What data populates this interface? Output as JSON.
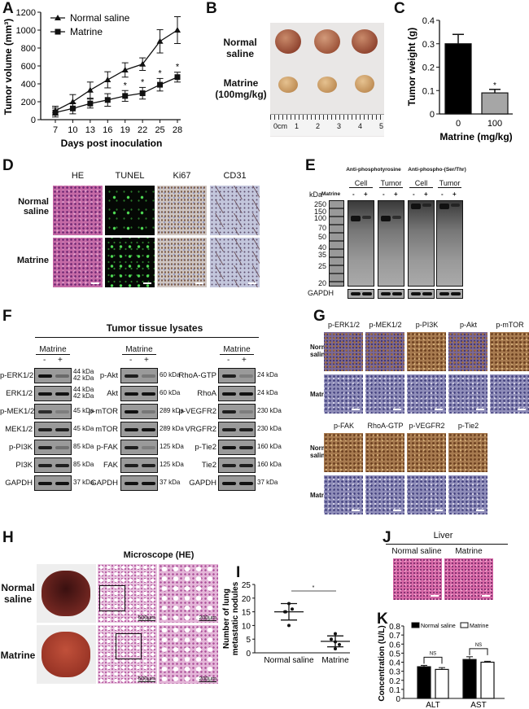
{
  "letters": {
    "A": "A",
    "B": "B",
    "C": "C",
    "D": "D",
    "E": "E",
    "F": "F",
    "G": "G",
    "H": "H",
    "I": "I",
    "J": "J",
    "K": "K"
  },
  "chart_data": [
    {
      "id": "A",
      "type": "line",
      "xlabel": "Days post inoculation",
      "ylabel": "Tumor volume (mm³)",
      "ylim": [
        0,
        1200
      ],
      "yticks": [
        0,
        200,
        400,
        600,
        800,
        1000,
        1200
      ],
      "x": [
        7,
        10,
        13,
        16,
        19,
        22,
        25,
        28
      ],
      "legend_position": "top-left",
      "series": [
        {
          "name": "Normal saline",
          "marker": "triangle",
          "values": [
            100,
            200,
            330,
            445,
            555,
            620,
            875,
            1000
          ],
          "error": [
            50,
            80,
            90,
            90,
            80,
            70,
            130,
            150
          ]
        },
        {
          "name": "Matrine",
          "marker": "square",
          "values": [
            80,
            125,
            180,
            220,
            265,
            295,
            390,
            475
          ],
          "error": [
            50,
            60,
            50,
            70,
            60,
            65,
            70,
            55
          ],
          "significance": [
            "",
            "",
            "",
            "",
            "*",
            "*",
            "*",
            "*"
          ]
        }
      ]
    },
    {
      "id": "C",
      "type": "bar",
      "xlabel": "Matrine (mg/kg)",
      "ylabel": "Tumor weight (g)",
      "ylim": [
        0,
        0.4
      ],
      "yticks": [
        "0",
        "0.1",
        "0.2",
        "0.3",
        "0.4"
      ],
      "categories": [
        "0",
        "100"
      ],
      "values": [
        0.3,
        0.09
      ],
      "error": [
        0.04,
        0.015
      ],
      "colors": [
        "#000000",
        "#a6a6a6"
      ],
      "significance": [
        "",
        "*"
      ]
    },
    {
      "id": "I",
      "type": "scatter",
      "ylabel": [
        "Number of lung",
        "metastatic nodules"
      ],
      "ylim": [
        0,
        25
      ],
      "yticks": [
        0,
        5,
        10,
        15,
        20,
        25
      ],
      "categories": [
        "Normal saline",
        "Matrine"
      ],
      "points": [
        [
          18,
          16,
          15,
          15,
          10
        ],
        [
          7,
          5,
          4,
          3,
          1.5
        ]
      ],
      "mean": [
        15,
        4.2
      ],
      "sd": [
        3,
        2
      ],
      "significance": "*"
    },
    {
      "id": "K",
      "type": "bar",
      "ylabel": "Concentration (U/L)",
      "ylim": [
        0,
        0.8
      ],
      "yticks": [
        "0",
        "0.1",
        "0.2",
        "0.3",
        "0.4",
        "0.5",
        "0.6",
        "0.7",
        "0.8"
      ],
      "categories": [
        "ALT",
        "AST"
      ],
      "legend_position": "top",
      "series": [
        {
          "name": "Normal saline",
          "color": "#000000",
          "values": [
            0.35,
            0.43
          ],
          "error": [
            0.015,
            0.03
          ]
        },
        {
          "name": "Matrine",
          "color": "#ffffff",
          "values": [
            0.32,
            0.4
          ],
          "error": [
            0.02,
            0.01
          ]
        }
      ],
      "significance": [
        "NS",
        "NS"
      ]
    }
  ],
  "panel_b": {
    "rows": [
      "Normal saline",
      "Matrine (100mg/kg)"
    ],
    "ruler": [
      "0cm",
      "1",
      "2",
      "3",
      "4",
      "5"
    ]
  },
  "panel_d": {
    "columns": [
      "HE",
      "TUNEL",
      "Ki67",
      "CD31"
    ],
    "rows": [
      "Normal saline",
      "Matrine"
    ]
  },
  "panel_e": {
    "groups": [
      "Anti-phosphotyrosine",
      "Anti-phospho-(Ser/Thr)"
    ],
    "subgroups": [
      "Cell",
      "Tumor",
      "Cell",
      "Tumor"
    ],
    "kda_label": "kDa",
    "treatment_label": "Matrine",
    "lanes": [
      "-",
      "+"
    ],
    "markers": [
      "250",
      "150",
      "100",
      "70",
      "50",
      "40",
      "35",
      "25",
      "20"
    ],
    "loading": "GAPDH"
  },
  "panel_f": {
    "title": "Tumor tissue lysates",
    "treatment": "Matrine",
    "lanes": [
      "-",
      "+"
    ],
    "columns": [
      [
        {
          "label": "p-ERK1/2",
          "kda": "44 kDa\n42 kDa",
          "intensity": [
            1,
            0.35
          ]
        },
        {
          "label": "ERK1/2",
          "kda": "44 kDa\n42 kDa",
          "intensity": [
            1,
            1
          ]
        },
        {
          "label": "p-MEK1/2",
          "kda": "45 kDa",
          "intensity": [
            0.8,
            0.2
          ]
        },
        {
          "label": "MEK1/2",
          "kda": "45 kDa",
          "intensity": [
            0.9,
            0.9
          ]
        },
        {
          "label": "p-PI3K",
          "kda": "85 kDa",
          "intensity": [
            0.9,
            0.3
          ]
        },
        {
          "label": "PI3K",
          "kda": "85 kDa",
          "intensity": [
            0.9,
            0.9
          ]
        },
        {
          "label": "GAPDH",
          "kda": "37 kDa",
          "intensity": [
            1,
            1
          ]
        }
      ],
      [
        {
          "label": "p-Akt",
          "kda": "60 kDa",
          "intensity": [
            0.9,
            0.25
          ]
        },
        {
          "label": "Akt",
          "kda": "60 kDa",
          "intensity": [
            1,
            1
          ]
        },
        {
          "label": "p-mTOR",
          "kda": "289 kDa",
          "intensity": [
            1,
            0.25
          ]
        },
        {
          "label": "mTOR",
          "kda": "289 kDa",
          "intensity": [
            1,
            1
          ]
        },
        {
          "label": "p-FAK",
          "kda": "125 kDa",
          "intensity": [
            0.9,
            0.2
          ]
        },
        {
          "label": "FAK",
          "kda": "125 kDa",
          "intensity": [
            0.9,
            0.9
          ]
        },
        {
          "label": "GAPDH",
          "kda": "37 kDa",
          "intensity": [
            1,
            1
          ]
        }
      ],
      [
        {
          "label": "RhoA-GTP",
          "kda": "24 kDa",
          "intensity": [
            0.9,
            0.2
          ]
        },
        {
          "label": "RhoA",
          "kda": "24 kDa",
          "intensity": [
            1,
            1
          ]
        },
        {
          "label": "p-VEGFR2",
          "kda": "230 kDa",
          "intensity": [
            0.9,
            0.2
          ]
        },
        {
          "label": "VRGFR2",
          "kda": "230 kDa",
          "intensity": [
            0.9,
            0.9
          ]
        },
        {
          "label": "p-Tie2",
          "kda": "160 kDa",
          "intensity": [
            1,
            0.9
          ]
        },
        {
          "label": "Tie2",
          "kda": "160 kDa",
          "intensity": [
            0.9,
            0.9
          ]
        },
        {
          "label": "GAPDH",
          "kda": "37 kDa",
          "intensity": [
            1,
            1
          ]
        }
      ]
    ]
  },
  "panel_g": {
    "rows": [
      "Normal saline",
      "Matrine"
    ],
    "block1": [
      "p-ERK1/2",
      "p-MEK1/2",
      "p-PI3K",
      "p-Akt",
      "p-mTOR"
    ],
    "block2": [
      "p-FAK",
      "RhoA-GTP",
      "p-VEGFR2",
      "p-Tie2"
    ]
  },
  "panel_h": {
    "title": "Microscope (HE)",
    "rows": [
      "Normal saline",
      "Matrine"
    ],
    "scale_low": "500μm",
    "scale_high": "200μm"
  },
  "panel_j": {
    "title": "Liver",
    "columns": [
      "Normal saline",
      "Matrine"
    ]
  }
}
